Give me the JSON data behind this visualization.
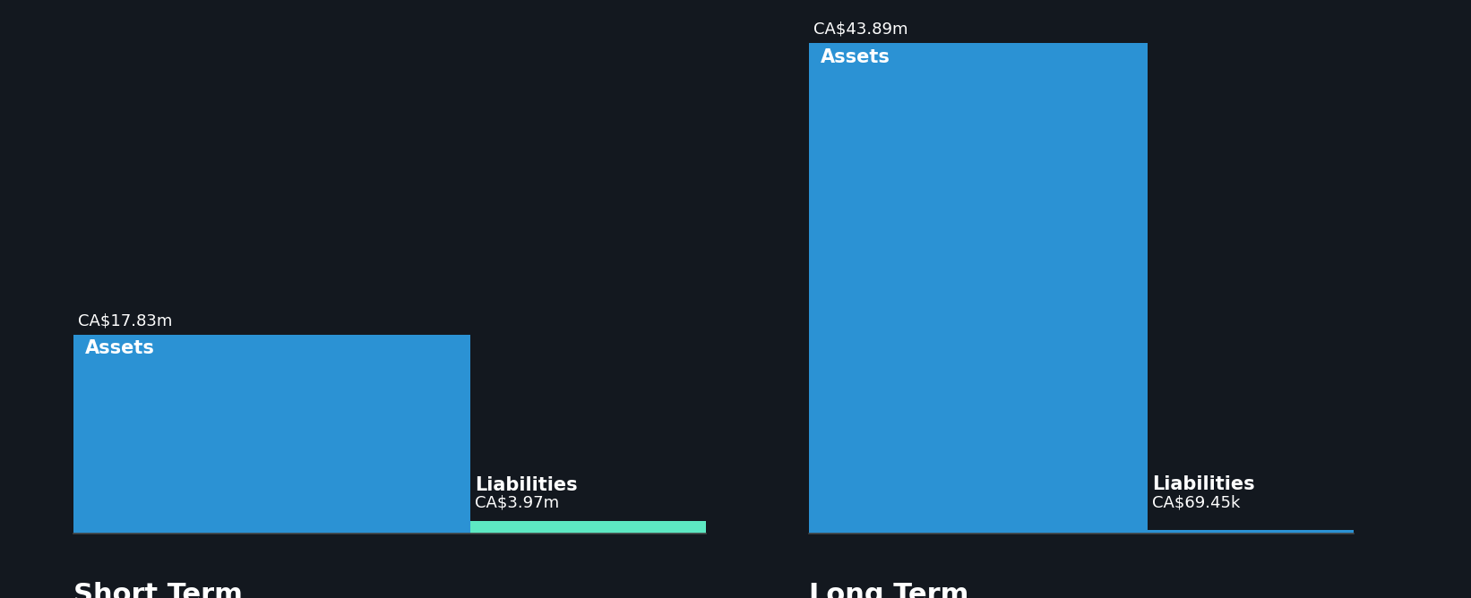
{
  "background_color": "#13181f",
  "short_term": {
    "assets_value": 17.83,
    "assets_label": "CA$17.83m",
    "assets_color": "#2b92d4",
    "liabilities_value": 3.97,
    "liabilities_label": "CA$3.97m",
    "liabilities_color": "#5de8c2",
    "title": "Short Term"
  },
  "long_term": {
    "assets_value": 43.89,
    "assets_label": "CA$43.89m",
    "assets_color": "#2b92d4",
    "liabilities_value": 0.06945,
    "liabilities_label": "CA$69.45k",
    "liabilities_color": "#2b92d4",
    "title": "Long Term"
  },
  "text_color": "#ffffff",
  "title_fontsize": 22,
  "value_label_fontsize": 13,
  "bar_label_fontsize": 15
}
